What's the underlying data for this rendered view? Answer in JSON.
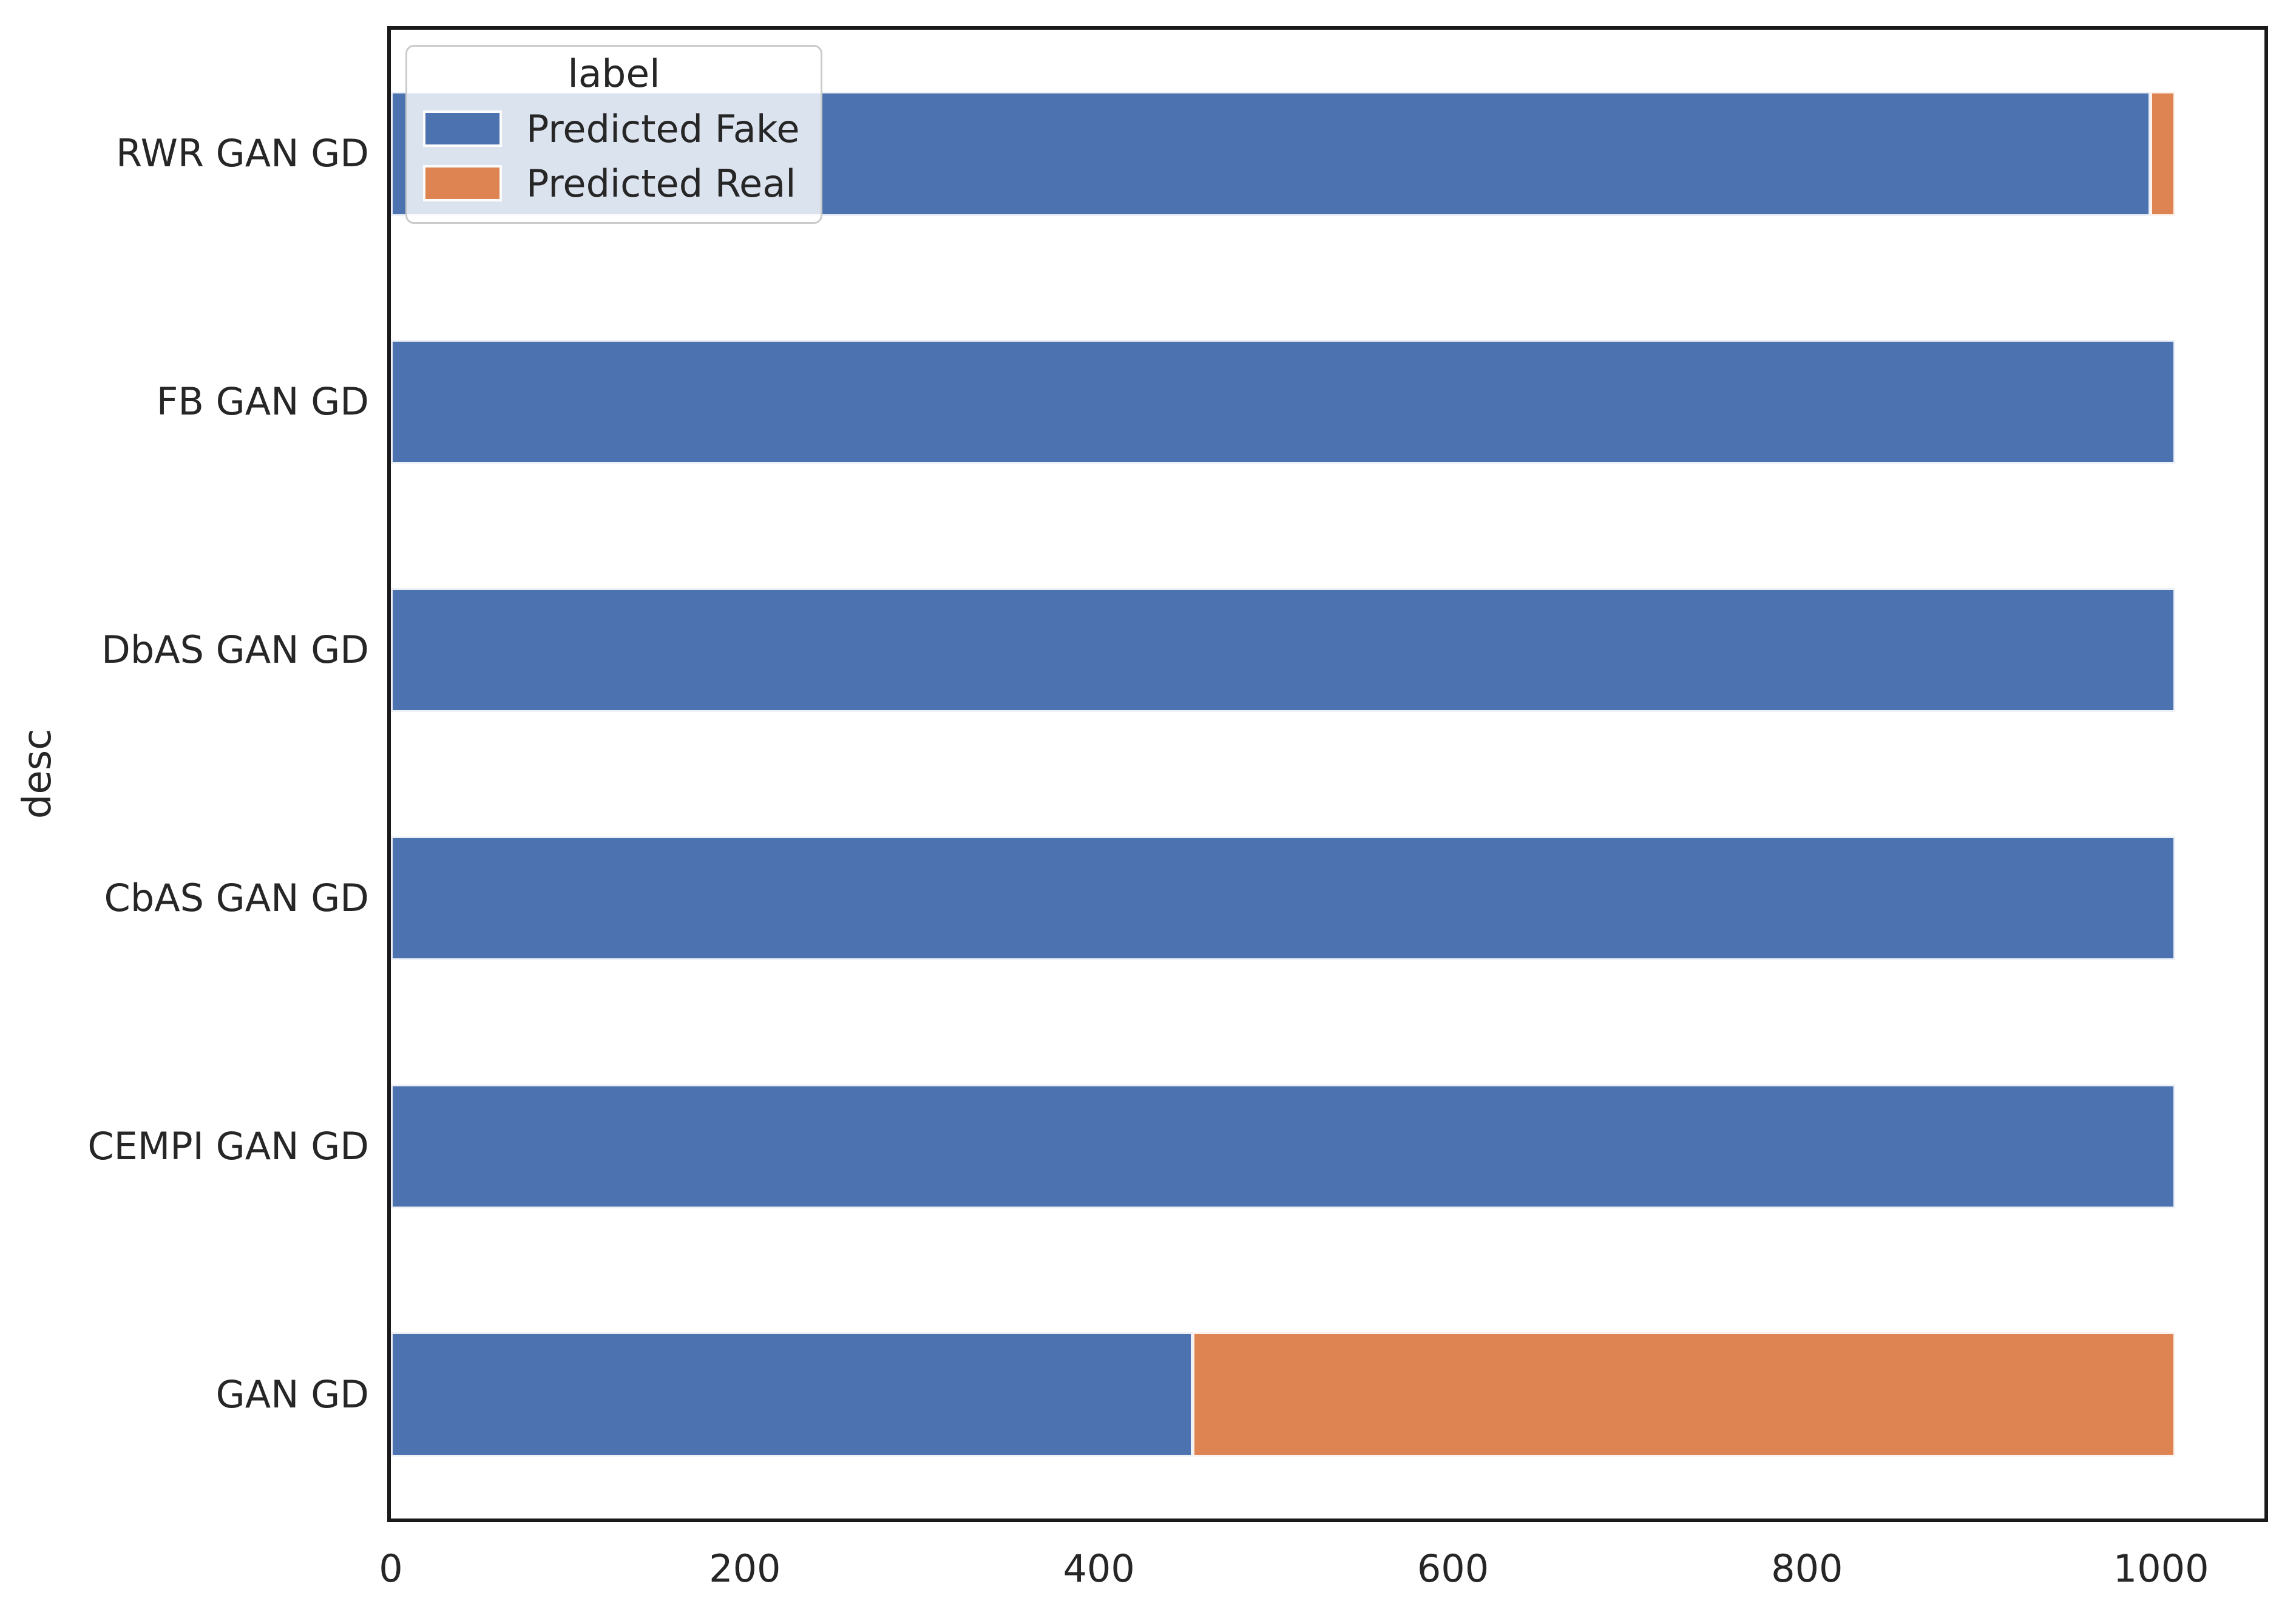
{
  "chart_data": {
    "type": "bar",
    "orientation": "horizontal",
    "stacked": true,
    "title": "",
    "xlabel": "",
    "ylabel": "desc",
    "categories": [
      "RWR GAN GD",
      "FB GAN GD",
      "DbAS GAN GD",
      "CbAS GAN GD",
      "CEMPI GAN GD",
      "GAN GD"
    ],
    "series": [
      {
        "name": "Predicted Fake",
        "color": "#4c72b0",
        "values": [
          994,
          1008,
          1008,
          1008,
          1008,
          453
        ]
      },
      {
        "name": "Predicted Real",
        "color": "#dd8452",
        "values": [
          14,
          0,
          0,
          0,
          0,
          555
        ]
      }
    ],
    "bar_total_per_category": 1008,
    "xticks": [
      "0",
      "200",
      "400",
      "600",
      "800",
      "1000"
    ],
    "xtick_values": [
      0,
      200,
      400,
      600,
      800,
      1000
    ],
    "xlim": [
      0,
      1058.4
    ],
    "grid": false,
    "legend": {
      "title": "label",
      "position": "upper left"
    }
  }
}
